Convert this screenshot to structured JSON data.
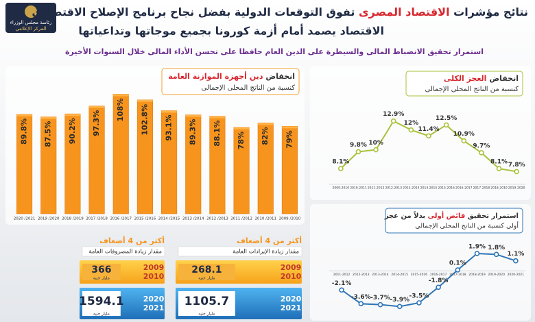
{
  "header": {
    "logo": [
      "رئاسة مجلس الوزراء",
      "المركز الإعلامي"
    ],
    "title": [
      "نتائج مؤشرات",
      "الاقتصاد المصرى",
      "تفوق التوقعات الدولية بفضل نجاح برنامج الإصلاح الاقتصادى"
    ],
    "title_line2": "الاقتصاد يصمد أمام أزمة كورونا بجميع موجاتها وتداعياتها",
    "subtitle": "استمرار تحقيق الانضباط المالى والسيطرة على الدين العام حافظا على تحسن الأداء المالى خلال السنوات الأخيرة"
  },
  "chart_data": [
    {
      "type": "bar",
      "title": [
        "انخفاض",
        "دين أجهزة الموازنة العامة"
      ],
      "subtitle": "كنسبة من الناتج المحلى الإجمالى",
      "categories": [
        "2009 /2010",
        "2010 /2011",
        "2011 /2012",
        "2012 /2013",
        "2013 /2014",
        "2014 /2015",
        "2015 /2016",
        "2016 /2017",
        "2017 /2018",
        "2018 /2019",
        "2019 /2020",
        "2020 /2021"
      ],
      "values": [
        79,
        82,
        78,
        88.1,
        89.3,
        93.1,
        102.8,
        108,
        97.3,
        90.2,
        87.5,
        89.8
      ],
      "value_labels": [
        "79%",
        "82%",
        "78%",
        "88.1%",
        "89.3%",
        "93.1%",
        "102.8%",
        "108%",
        "97.3%",
        "90.2%",
        "87.5%",
        "89.8%"
      ],
      "color": "#f7941d",
      "ylim": [
        0,
        120
      ],
      "reverse_x": true
    },
    {
      "type": "line",
      "title": [
        "انخفاض",
        "العجز الكلى"
      ],
      "subtitle": "كنسبة من الناتج المحلى الإجمالى",
      "categories": [
        "2009-2010",
        "2010-2011",
        "2011-2012",
        "2012-2013",
        "2013-2014",
        "2014-2015",
        "2015-2016",
        "2016-2017",
        "2017-2018",
        "2018-2019",
        "2019-2020"
      ],
      "values": [
        8.1,
        9.8,
        10,
        12.9,
        12,
        11.4,
        12.5,
        10.9,
        9.7,
        8.1,
        7.8
      ],
      "value_labels": [
        "8.1%",
        "9.8%",
        "10%",
        "12.9%",
        "12%",
        "11.4%",
        "12.5%",
        "10.9%",
        "9.7%",
        "8.1%",
        "7.8%"
      ],
      "color": "#a8c23a",
      "ylim": [
        7,
        13.5
      ]
    },
    {
      "type": "line",
      "title": [
        "استمرار تحقيق",
        "فائض أولى",
        "بدلاً من عجز"
      ],
      "subtitle": "أولى كنسبة من الناتج المحلى الإجمالى",
      "categories": [
        "2011-2012",
        "2012-2013",
        "2013-2014",
        "2014-2015",
        "2015-2016",
        "2016-2017",
        "2017-2018",
        "2018-2019",
        "2019-2020",
        "2020-2021"
      ],
      "values": [
        -2.1,
        -3.6,
        -3.7,
        -3.9,
        -3.5,
        -1.8,
        0.1,
        1.9,
        1.8,
        1.1
      ],
      "value_labels": [
        "-2.1%",
        "-3.6%",
        "-3.7%",
        "-3.9%",
        "-3.5%",
        "-1.8%",
        "0.1%",
        "1.9%",
        "1.8%",
        "1.1%"
      ],
      "color": "#2e75b6",
      "ylim": [
        -5,
        2.5
      ]
    }
  ],
  "callouts": [
    {
      "headline": "أكثر من 4 أضعاف",
      "caption": "مقدار زيادة الإيرادات العامة",
      "items": [
        {
          "period": [
            "2009",
            "2010"
          ],
          "amount": 268.1,
          "unit": "مليار جنيه"
        },
        {
          "period": [
            "2020",
            "2021"
          ],
          "amount": 1105.7,
          "unit": "مليار جنيه"
        }
      ]
    },
    {
      "headline": "أكثر من 4 أضعاف",
      "caption": "مقدار زيادة المصروفات العامة",
      "items": [
        {
          "period": [
            "2009",
            "2010"
          ],
          "amount": 366,
          "unit": "مليار جنيه"
        },
        {
          "period": [
            "2020",
            "2021"
          ],
          "amount": 1594.1,
          "unit": "مليار جنيه"
        }
      ]
    }
  ]
}
